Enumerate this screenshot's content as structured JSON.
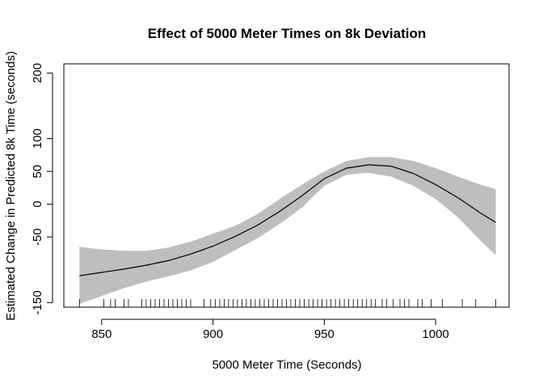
{
  "chart_data": {
    "type": "line",
    "title": "Effect of 5000 Meter Times on 8k Deviation",
    "xlabel": "5000 Meter Time (Seconds)",
    "ylabel": "Estimated Change in Predicted 8k Time (seconds)",
    "xlim": [
      833,
      1033
    ],
    "ylim": [
      -157,
      214
    ],
    "xticks": [
      850,
      900,
      950,
      1000
    ],
    "yticks": [
      -150,
      -50,
      0,
      50,
      100,
      200
    ],
    "grid": false,
    "legend": "none",
    "colors": {
      "line": "#000000",
      "band": "#bebebe",
      "rug": "#000000"
    },
    "series": [
      {
        "x": [
          840,
          850,
          860,
          870,
          880,
          890,
          900,
          910,
          920,
          930,
          940,
          950,
          960,
          970,
          980,
          990,
          1000,
          1010,
          1020,
          1027
        ],
        "fit": [
          -109,
          -104,
          -99,
          -93,
          -86,
          -76,
          -64,
          -49,
          -32,
          -11,
          13,
          39,
          55,
          60,
          58,
          47,
          30,
          10,
          -13,
          -28
        ],
        "lower": [
          -152,
          -140,
          -128,
          -118,
          -110,
          -101,
          -88,
          -70,
          -52,
          -30,
          -5,
          28,
          45,
          48,
          42,
          28,
          8,
          -20,
          -55,
          -78
        ],
        "upper": [
          -65,
          -69,
          -71,
          -71,
          -66,
          -57,
          -45,
          -33,
          -15,
          8,
          30,
          50,
          66,
          72,
          72,
          66,
          55,
          42,
          30,
          23
        ]
      }
    ],
    "rug": [
      840,
      851,
      854,
      856,
      860,
      862,
      868,
      870,
      872,
      874,
      876,
      878,
      880,
      882,
      884,
      886,
      888,
      890,
      896,
      899,
      901,
      903,
      905,
      907,
      909,
      911,
      913,
      915,
      917,
      919,
      921,
      923,
      925,
      927,
      929,
      931,
      933,
      935,
      937,
      939,
      941,
      943,
      945,
      947,
      949,
      951,
      953,
      955,
      957,
      959,
      961,
      963,
      965,
      967,
      969,
      971,
      973,
      976,
      978,
      981,
      984,
      986,
      988,
      992,
      994,
      998,
      1003,
      1012,
      1018,
      1027
    ]
  }
}
